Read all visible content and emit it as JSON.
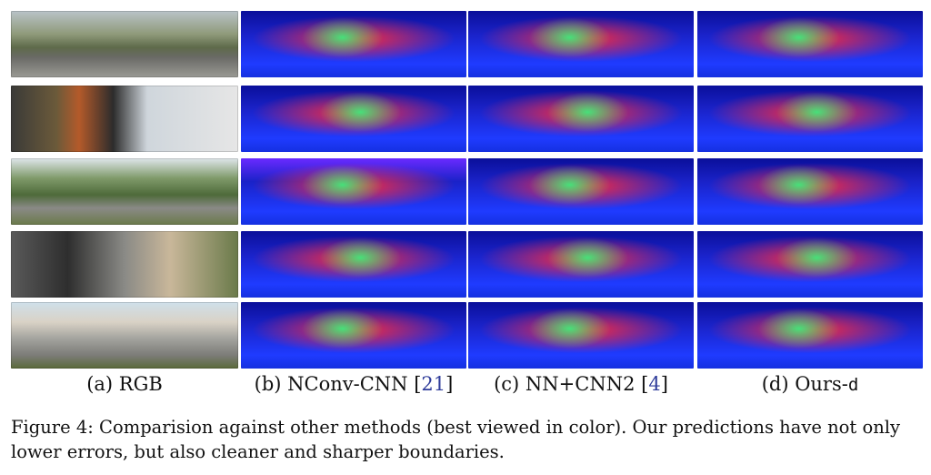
{
  "figure": {
    "columns": [
      {
        "prefix": "(a) RGB",
        "ref": "",
        "suffix": ""
      },
      {
        "prefix": "(b) NConv-CNN [",
        "ref": "21",
        "suffix": "]"
      },
      {
        "prefix": "(c) NN+CNN2 [",
        "ref": "4",
        "suffix": "]"
      },
      {
        "prefix": "(d) Ours-",
        "ref": "",
        "suffix": "",
        "mono": "d"
      }
    ],
    "caption": "Figure 4: Comparision against other methods (best viewed in color). Our predictions have not only lower errors, but also cleaner and sharper boundaries.",
    "colors": {
      "ref_link": "#2f3c9a",
      "depth_far": "#1a22c8",
      "depth_mid": "#ff2a3a",
      "depth_near": "#46e07a"
    }
  }
}
